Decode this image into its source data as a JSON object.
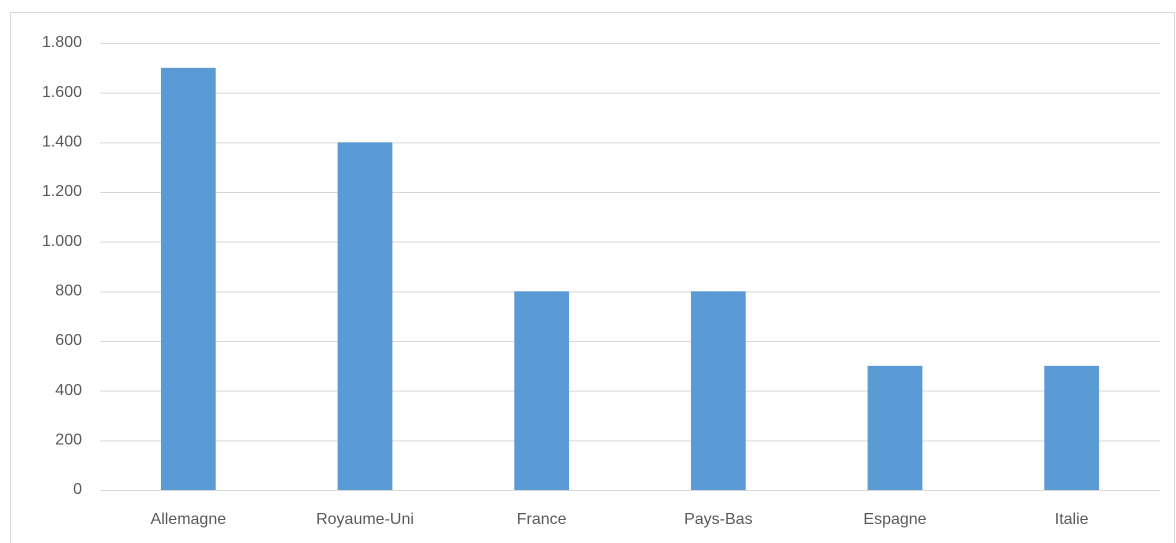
{
  "chart_data": {
    "type": "bar",
    "categories": [
      "Allemagne",
      "Royaume-Uni",
      "France",
      "Pays-Bas",
      "Espagne",
      "Italie"
    ],
    "values": [
      1700,
      1400,
      800,
      800,
      500,
      500
    ],
    "color": "#5b9bd5",
    "ylim": [
      0,
      1800
    ],
    "yticks": [
      0,
      200,
      400,
      600,
      800,
      {
        "value": 1000,
        "label": "1.000"
      },
      {
        "value": 1200,
        "label": "1.200"
      },
      {
        "value": 1400,
        "label": "1.400"
      },
      {
        "value": 1600,
        "label": "1.600"
      },
      {
        "value": 1800,
        "label": "1.800"
      }
    ],
    "grid": true
  }
}
